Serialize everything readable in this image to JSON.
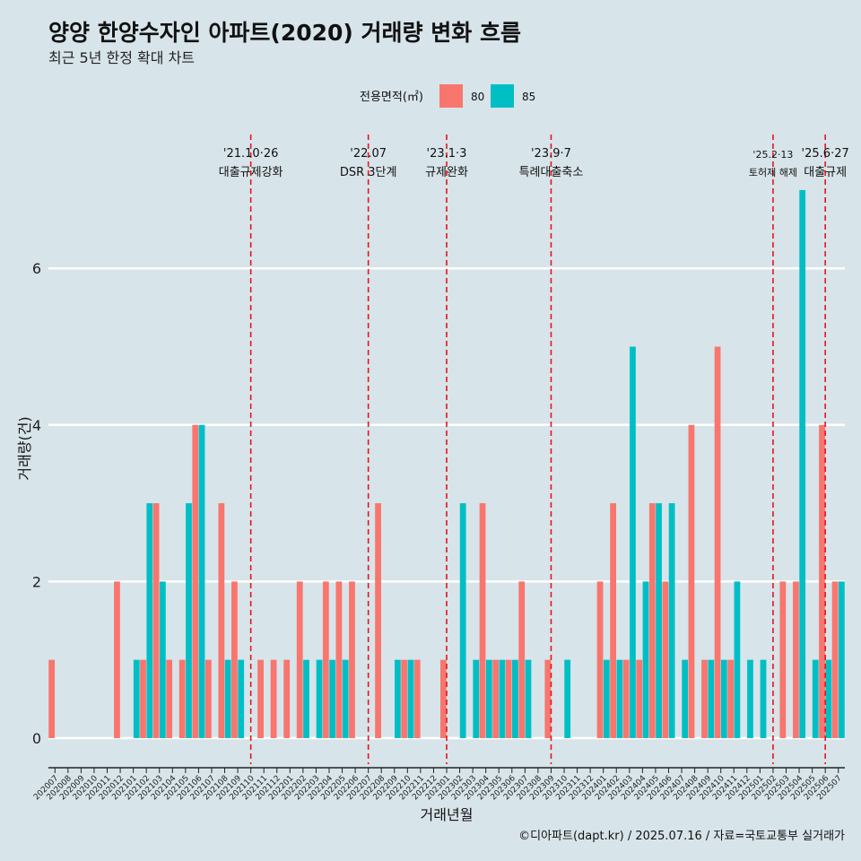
{
  "chart_data": {
    "type": "bar",
    "title": "양양 한양수자인 아파트(2020) 거래량 변화 흐름",
    "subtitle": "최근 5년 한정 확대 차트",
    "xlabel": "거래년월",
    "ylabel": "거래량(건)",
    "caption": "©디아파트(dapt.kr) / 2025.07.16 / 자료=국토교통부 실거래가",
    "legend_title": "전용면적(㎡)",
    "legend_position": "top",
    "ylim": [
      -0.35,
      7.5
    ],
    "yticks": [
      0,
      2,
      4,
      6
    ],
    "categories": [
      "202007",
      "202008",
      "202009",
      "202010",
      "202011",
      "202012",
      "202101",
      "202102",
      "202103",
      "202104",
      "202105",
      "202106",
      "202107",
      "202108",
      "202109",
      "202110",
      "202111",
      "202112",
      "202201",
      "202202",
      "202203",
      "202204",
      "202205",
      "202206",
      "202207",
      "202208",
      "202209",
      "202210",
      "202211",
      "202212",
      "202301",
      "202302",
      "202303",
      "202304",
      "202305",
      "202306",
      "202307",
      "202308",
      "202309",
      "202310",
      "202311",
      "202312",
      "202401",
      "202402",
      "202403",
      "202404",
      "202405",
      "202406",
      "202407",
      "202408",
      "202409",
      "202410",
      "202411",
      "202412",
      "202501",
      "202502",
      "202503",
      "202504",
      "202505",
      "202506",
      "202507"
    ],
    "series": [
      {
        "name": "80",
        "color": "#F8766D",
        "values": [
          1,
          0,
          0,
          0,
          0,
          2,
          0,
          1,
          3,
          1,
          1,
          4,
          1,
          3,
          2,
          0,
          1,
          1,
          1,
          2,
          0,
          2,
          2,
          2,
          0,
          3,
          0,
          1,
          1,
          0,
          1,
          0,
          0,
          3,
          1,
          1,
          2,
          0,
          1,
          0,
          0,
          0,
          2,
          3,
          1,
          1,
          3,
          2,
          0,
          4,
          1,
          5,
          1,
          0,
          0,
          0,
          2,
          2,
          0,
          4,
          2
        ]
      },
      {
        "name": "85",
        "color": "#00BFC4",
        "values": [
          0,
          0,
          0,
          0,
          0,
          0,
          1,
          3,
          2,
          0,
          3,
          4,
          0,
          1,
          1,
          0,
          0,
          0,
          0,
          1,
          1,
          1,
          1,
          0,
          0,
          0,
          1,
          1,
          0,
          0,
          0,
          3,
          1,
          1,
          1,
          1,
          1,
          0,
          0,
          1,
          0,
          0,
          1,
          1,
          5,
          2,
          3,
          3,
          1,
          0,
          1,
          1,
          2,
          1,
          1,
          0,
          0,
          7,
          1,
          1,
          2
        ]
      }
    ],
    "events": [
      {
        "date": "'21.10·26",
        "label": "대출규제강화",
        "category": "202110"
      },
      {
        "date": "'22.07",
        "label": "DSR 3단계",
        "category": "202207"
      },
      {
        "date": "'23.1·3",
        "label": "규제완화",
        "category": "202301"
      },
      {
        "date": "'23.9·7",
        "label": "특례대출축소",
        "category": "202309"
      },
      {
        "date": "'25.2·13",
        "label": "토허제 해제",
        "category": "202502"
      },
      {
        "date": "'25.6·27",
        "label": "대출규제",
        "category": "202506"
      }
    ]
  }
}
